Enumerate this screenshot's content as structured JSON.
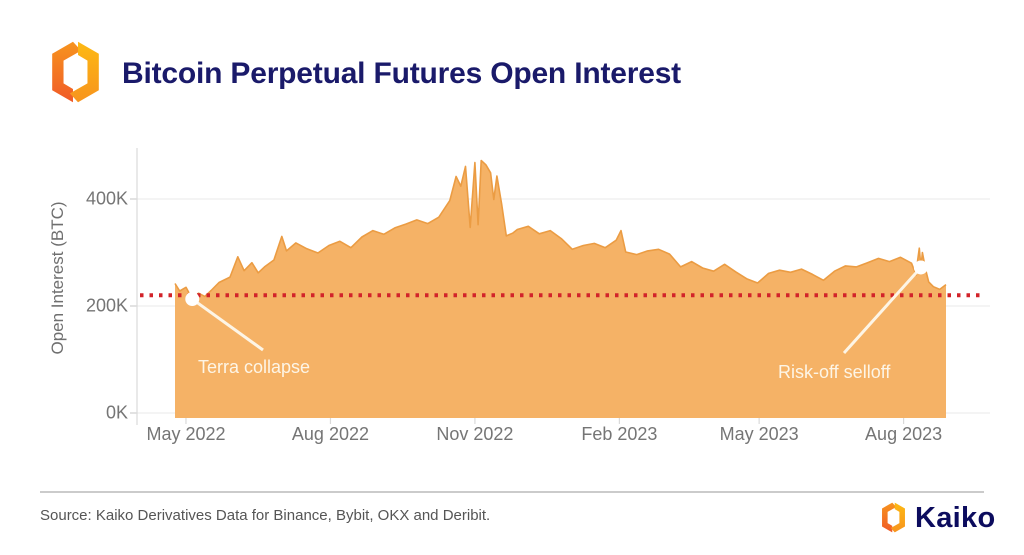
{
  "header": {
    "title": "Bitcoin Perpetual Futures Open Interest"
  },
  "footer": {
    "source": "Source: Kaiko Derivatives Data for Binance, Bybit, OKX and Deribit.",
    "brand": "Kaiko"
  },
  "icons": {
    "header_logo": "kaiko-hex-logo",
    "footer_logo": "kaiko-hex-logo"
  },
  "chart_data": {
    "type": "area",
    "title": "Bitcoin Perpetual Futures Open Interest",
    "xlabel": "",
    "ylabel": "Open Interest (BTC)",
    "unit": "K BTC",
    "ylim": [
      0,
      480
    ],
    "grid": true,
    "y_ticks": [
      {
        "label": "0K",
        "value": 0
      },
      {
        "label": "200K",
        "value": 200
      },
      {
        "label": "400K",
        "value": 400
      }
    ],
    "x_ticks": [
      {
        "label": "May 2022",
        "date": "2022-05-01"
      },
      {
        "label": "Aug 2022",
        "date": "2022-08-01"
      },
      {
        "label": "Nov 2022",
        "date": "2022-11-01"
      },
      {
        "label": "Feb 2023",
        "date": "2023-02-01"
      },
      {
        "label": "May 2023",
        "date": "2023-05-01"
      },
      {
        "label": "Aug 2023",
        "date": "2023-08-01"
      }
    ],
    "reference_line": {
      "value": 220,
      "color": "#d2232a",
      "style": "dotted"
    },
    "annotations": [
      {
        "label": "Terra collapse",
        "date": "2022-05-05",
        "value": 213
      },
      {
        "label": "Risk-off selloff",
        "date": "2023-08-12",
        "value": 272
      }
    ],
    "colors": {
      "area_fill": "#f5b266",
      "area_stroke": "#eb9c43",
      "annotation": "#fdf5e6"
    },
    "series": [
      {
        "name": "Open Interest (K BTC)",
        "dates": [
          "2022-04-24",
          "2022-04-27",
          "2022-05-01",
          "2022-05-05",
          "2022-05-09",
          "2022-05-13",
          "2022-05-17",
          "2022-05-22",
          "2022-05-29",
          "2022-06-03",
          "2022-06-07",
          "2022-06-12",
          "2022-06-16",
          "2022-06-20",
          "2022-06-26",
          "2022-07-01",
          "2022-07-04",
          "2022-07-10",
          "2022-07-17",
          "2022-07-24",
          "2022-07-31",
          "2022-08-07",
          "2022-08-14",
          "2022-08-21",
          "2022-08-28",
          "2022-09-04",
          "2022-09-11",
          "2022-09-18",
          "2022-09-25",
          "2022-10-02",
          "2022-10-09",
          "2022-10-16",
          "2022-10-20",
          "2022-10-23",
          "2022-10-26",
          "2022-10-29",
          "2022-11-01",
          "2022-11-03",
          "2022-11-05",
          "2022-11-08",
          "2022-11-11",
          "2022-11-13",
          "2022-11-15",
          "2022-11-18",
          "2022-11-21",
          "2022-11-25",
          "2022-11-28",
          "2022-12-05",
          "2022-12-12",
          "2022-12-19",
          "2022-12-26",
          "2023-01-02",
          "2023-01-09",
          "2023-01-16",
          "2023-01-23",
          "2023-01-30",
          "2023-02-02",
          "2023-02-05",
          "2023-02-12",
          "2023-02-19",
          "2023-02-26",
          "2023-03-05",
          "2023-03-12",
          "2023-03-19",
          "2023-03-26",
          "2023-04-02",
          "2023-04-09",
          "2023-04-16",
          "2023-04-23",
          "2023-04-30",
          "2023-05-07",
          "2023-05-14",
          "2023-05-21",
          "2023-05-28",
          "2023-06-04",
          "2023-06-11",
          "2023-06-18",
          "2023-06-25",
          "2023-07-02",
          "2023-07-09",
          "2023-07-16",
          "2023-07-23",
          "2023-07-30",
          "2023-08-06",
          "2023-08-09",
          "2023-08-10",
          "2023-08-11",
          "2023-08-12",
          "2023-08-13",
          "2023-08-15",
          "2023-08-17",
          "2023-08-20",
          "2023-08-24",
          "2023-08-28"
        ],
        "values": [
          242,
          228,
          235,
          213,
          224,
          218,
          229,
          244,
          254,
          292,
          266,
          281,
          262,
          273,
          286,
          330,
          303,
          318,
          307,
          299,
          313,
          321,
          309,
          329,
          341,
          334,
          346,
          353,
          361,
          354,
          366,
          397,
          442,
          424,
          461,
          347,
          468,
          352,
          472,
          464,
          449,
          399,
          443,
          391,
          331,
          336,
          343,
          349,
          335,
          341,
          326,
          306,
          313,
          317,
          309,
          323,
          341,
          301,
          296,
          303,
          306,
          297,
          273,
          283,
          271,
          265,
          278,
          264,
          251,
          243,
          261,
          267,
          263,
          269,
          259,
          248,
          265,
          275,
          273,
          281,
          289,
          283,
          291,
          280,
          258,
          286,
          308,
          272,
          300,
          268,
          245,
          236,
          231,
          240
        ]
      }
    ]
  }
}
